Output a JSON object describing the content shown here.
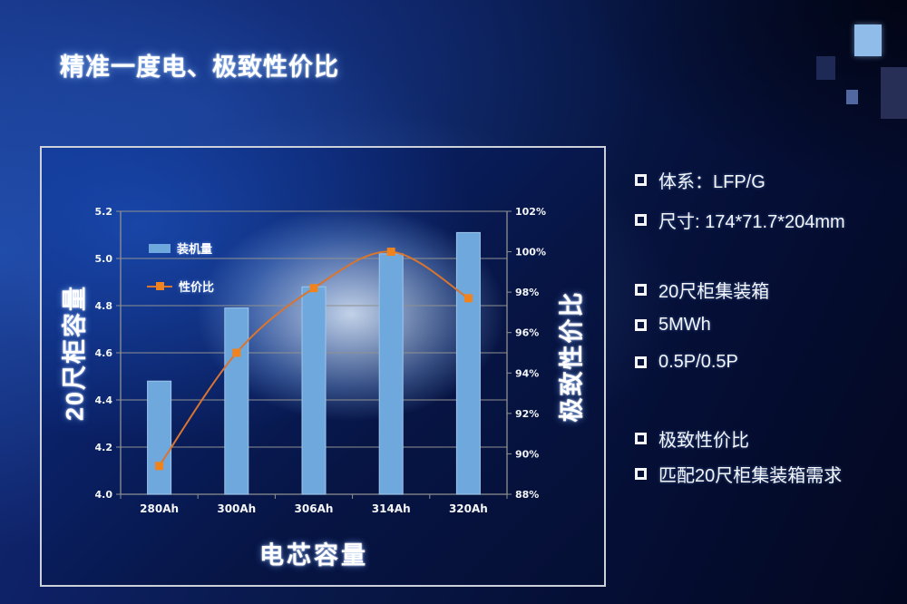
{
  "slide": {
    "title": "精准一度电、极致性价比"
  },
  "chart_data": {
    "type": "bar+line",
    "categories": [
      "280Ah",
      "300Ah",
      "306Ah",
      "314Ah",
      "320Ah"
    ],
    "series": [
      {
        "name": "装机量",
        "type": "bar",
        "axis": "left",
        "values": [
          4.48,
          4.79,
          4.88,
          5.02,
          5.11
        ]
      },
      {
        "name": "性价比",
        "type": "line",
        "axis": "right",
        "values": [
          89.4,
          95.0,
          98.2,
          100.0,
          97.7
        ]
      }
    ],
    "xlabel": "电芯容量",
    "left_axis": {
      "title": "20尺柜容量",
      "min": 4.0,
      "max": 5.2,
      "step": 0.2
    },
    "right_axis": {
      "title": "极致性价比",
      "min": 88,
      "max": 102,
      "step": 2,
      "suffix": "%"
    },
    "grid": true,
    "legend_position": "inside-top-left"
  },
  "panel": {
    "items": [
      {
        "text": "体系：LFP/G"
      },
      {
        "text": "尺寸:  174*71.7*204mm"
      },
      {
        "text": "20尺柜集装箱"
      },
      {
        "text": "5MWh"
      },
      {
        "text": "0.5P/0.5P"
      },
      {
        "text": "极致性价比"
      },
      {
        "text": "匹配20尺柜集装箱需求"
      }
    ]
  },
  "colors": {
    "bar": "#6fa8dc",
    "bar_edge": "#9cc6ee",
    "line": "#d9752f",
    "marker": "#f0831e",
    "grid": "#8f9190",
    "axis_text": "#f5f6f8"
  }
}
